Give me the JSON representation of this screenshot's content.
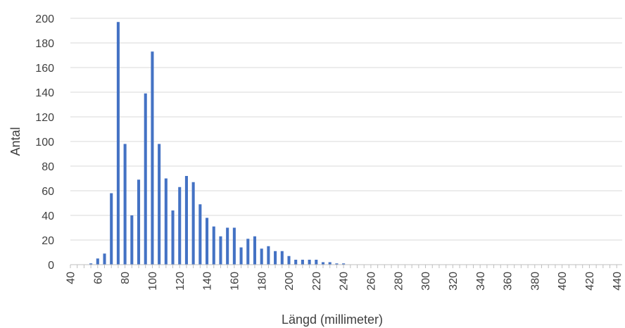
{
  "chart_data": {
    "type": "bar",
    "title": "",
    "xlabel": "Längd (millimeter)",
    "ylabel": "Antal",
    "ylim": [
      0,
      200
    ],
    "yticks": [
      0,
      20,
      40,
      60,
      80,
      100,
      120,
      140,
      160,
      180,
      200
    ],
    "xticks": [
      "40",
      "60",
      "80",
      "100",
      "120",
      "140",
      "160",
      "180",
      "200",
      "220",
      "240",
      "260",
      "280",
      "300",
      "320",
      "340",
      "360",
      "380",
      "400",
      "420",
      "440"
    ],
    "x_range": [
      40,
      444
    ],
    "bin_width": 5,
    "grid": true,
    "legend": "none",
    "colors": {
      "bar": "#4472C4",
      "grid": "#D9D9D9",
      "axis": "#BFBFBF",
      "text": "#404040"
    },
    "series": [
      {
        "x": [
          40,
          45,
          50,
          55,
          60,
          65,
          70,
          75,
          80,
          85,
          90,
          95,
          100,
          105,
          110,
          115,
          120,
          125,
          130,
          135,
          140,
          145,
          150,
          155,
          160,
          165,
          170,
          175,
          180,
          185,
          190,
          195,
          200,
          205,
          210,
          215,
          220,
          225,
          230,
          235,
          240,
          245,
          250,
          255,
          260,
          265,
          270,
          275,
          280,
          285,
          290,
          295,
          300,
          305,
          310,
          315,
          320,
          325,
          330,
          335,
          340,
          345,
          350,
          355,
          360,
          365,
          370,
          375,
          380,
          385,
          390,
          395,
          400,
          405,
          410,
          415,
          420,
          425,
          430,
          435,
          440
        ],
        "values": [
          0,
          0,
          0,
          1,
          5,
          9,
          58,
          197,
          98,
          40,
          69,
          139,
          173,
          98,
          70,
          44,
          63,
          72,
          67,
          49,
          38,
          31,
          23,
          30,
          30,
          14,
          21,
          23,
          13,
          15,
          11,
          11,
          7,
          4,
          4,
          4,
          4,
          2,
          2,
          1,
          1,
          0,
          0,
          0,
          0,
          0,
          0,
          0,
          0,
          0,
          0,
          0,
          0,
          0,
          0,
          0,
          0,
          0,
          0,
          0,
          0,
          0,
          0,
          0,
          0,
          0,
          0,
          0,
          0,
          0,
          0,
          0,
          0,
          0,
          0,
          0,
          0,
          0,
          0,
          0,
          0
        ]
      }
    ]
  }
}
